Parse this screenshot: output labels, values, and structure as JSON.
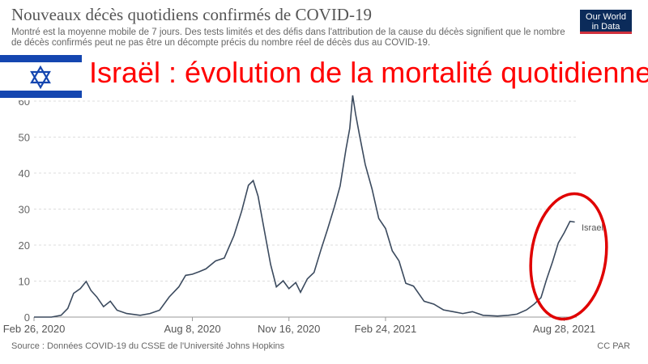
{
  "header": {
    "title": "Nouveaux décès quotidiens confirmés de COVID-19",
    "subtitle": "Montré est la moyenne mobile de 7 jours. Des tests limités et des défis dans l'attribution de la cause du décès signifient que le nombre de décès confirmés peut ne pas être un décompte précis du nombre réel de décès dus au COVID-19.",
    "logo_line1": "Our World",
    "logo_line2": "in Data"
  },
  "overlay": {
    "title": "Israël : évolution de la mortalité quotidienne",
    "flag": "israel-flag-icon",
    "flag_color": "#1446b0",
    "title_color": "#ff0000",
    "highlight_circle_color": "#e00000"
  },
  "footer": {
    "source": "Source : Données COVID-19 du CSSE de l'Université Johns Hopkins",
    "license": "CC PAR"
  },
  "chart_data": {
    "type": "line",
    "title": "Nouveaux décès quotidiens confirmés de COVID-19",
    "xlabel": "",
    "ylabel": "",
    "ylim": [
      0,
      60
    ],
    "yticks": [
      0,
      10,
      20,
      30,
      40,
      50,
      60
    ],
    "xlim": [
      "2020-02-26",
      "2021-09-10"
    ],
    "xticks": [
      "Feb 26, 2020",
      "Aug 8, 2020",
      "Nov 16, 2020",
      "Feb 24, 2021",
      "Aug 28, 2021"
    ],
    "grid": true,
    "line_color": "#3b4a5e",
    "series": [
      {
        "name": "Israel",
        "points": [
          [
            "2020-02-26",
            0
          ],
          [
            "2020-03-15",
            0
          ],
          [
            "2020-03-25",
            0.5
          ],
          [
            "2020-04-01",
            3
          ],
          [
            "2020-04-07",
            6
          ],
          [
            "2020-04-14",
            8.5
          ],
          [
            "2020-04-20",
            9.3
          ],
          [
            "2020-04-25",
            8
          ],
          [
            "2020-05-01",
            5
          ],
          [
            "2020-05-08",
            3.5
          ],
          [
            "2020-05-15",
            3.8
          ],
          [
            "2020-05-22",
            2.5
          ],
          [
            "2020-06-01",
            1
          ],
          [
            "2020-06-15",
            0.5
          ],
          [
            "2020-06-25",
            1
          ],
          [
            "2020-07-05",
            2.5
          ],
          [
            "2020-07-15",
            5
          ],
          [
            "2020-07-25",
            9
          ],
          [
            "2020-08-01",
            11
          ],
          [
            "2020-08-08",
            12.5
          ],
          [
            "2020-08-15",
            12
          ],
          [
            "2020-08-22",
            14
          ],
          [
            "2020-09-01",
            15
          ],
          [
            "2020-09-10",
            17
          ],
          [
            "2020-09-20",
            22
          ],
          [
            "2020-09-28",
            30
          ],
          [
            "2020-10-05",
            36
          ],
          [
            "2020-10-10",
            38.5
          ],
          [
            "2020-10-15",
            33
          ],
          [
            "2020-10-22",
            24
          ],
          [
            "2020-10-28",
            14
          ],
          [
            "2020-11-03",
            9
          ],
          [
            "2020-11-10",
            9.5
          ],
          [
            "2020-11-16",
            8.5
          ],
          [
            "2020-11-23",
            9
          ],
          [
            "2020-11-28",
            7.5
          ],
          [
            "2020-12-05",
            10
          ],
          [
            "2020-12-12",
            13
          ],
          [
            "2020-12-19",
            18
          ],
          [
            "2020-12-26",
            25
          ],
          [
            "2021-01-02",
            30
          ],
          [
            "2021-01-08",
            37
          ],
          [
            "2021-01-14",
            46
          ],
          [
            "2021-01-18",
            53
          ],
          [
            "2021-01-21",
            61
          ],
          [
            "2021-01-24",
            57
          ],
          [
            "2021-01-28",
            50
          ],
          [
            "2021-02-03",
            43
          ],
          [
            "2021-02-10",
            35
          ],
          [
            "2021-02-17",
            28
          ],
          [
            "2021-02-24",
            24
          ],
          [
            "2021-03-03",
            19
          ],
          [
            "2021-03-10",
            15
          ],
          [
            "2021-03-17",
            10
          ],
          [
            "2021-03-25",
            8
          ],
          [
            "2021-04-05",
            5
          ],
          [
            "2021-04-15",
            3
          ],
          [
            "2021-04-25",
            2
          ],
          [
            "2021-05-05",
            1.5
          ],
          [
            "2021-05-15",
            1
          ],
          [
            "2021-05-25",
            1.5
          ],
          [
            "2021-06-05",
            0.5
          ],
          [
            "2021-06-20",
            0.3
          ],
          [
            "2021-07-01",
            0.5
          ],
          [
            "2021-07-10",
            0.8
          ],
          [
            "2021-07-20",
            2
          ],
          [
            "2021-07-28",
            3
          ],
          [
            "2021-08-04",
            6
          ],
          [
            "2021-08-10",
            10
          ],
          [
            "2021-08-16",
            16
          ],
          [
            "2021-08-22",
            20
          ],
          [
            "2021-08-28",
            24
          ],
          [
            "2021-09-03",
            26
          ],
          [
            "2021-09-08",
            27
          ]
        ]
      }
    ],
    "series_label": "Israel"
  }
}
